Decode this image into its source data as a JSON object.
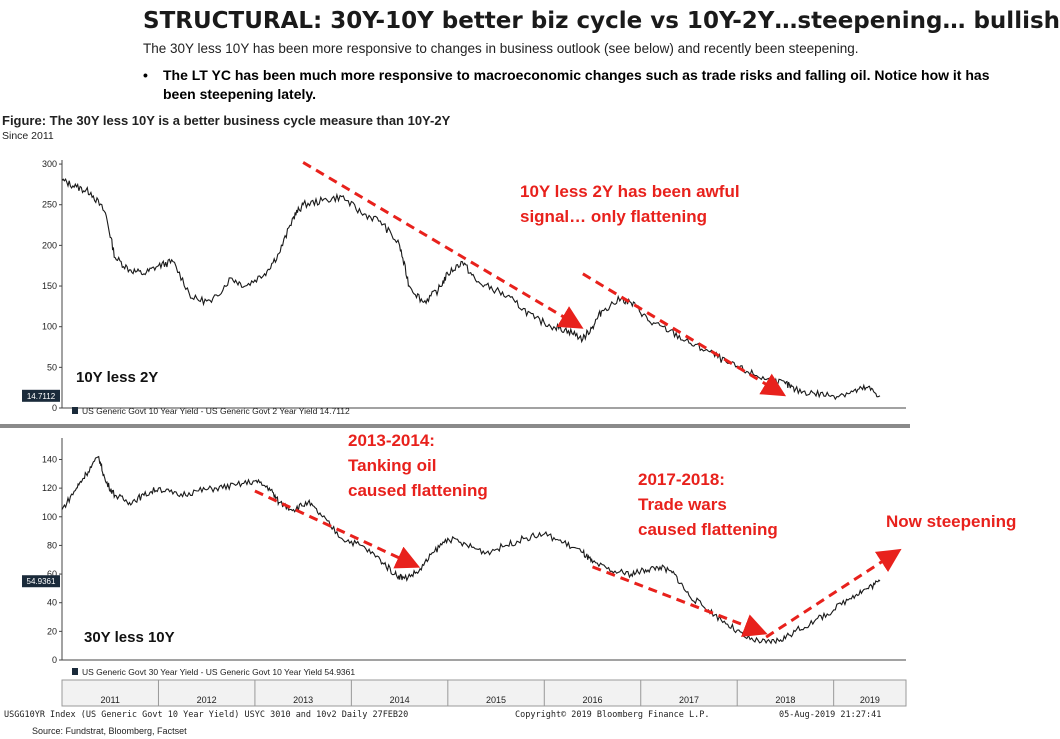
{
  "header": {
    "title": "STRUCTURAL: 30Y-10Y better biz cycle vs 10Y-2Y…steepening… bullish",
    "subtitle": "The 30Y less 10Y has been more responsive to changes in business outlook (see below) and recently been steepening.",
    "bullet_symbol": "•",
    "bullet_text": "The LT YC has been much more responsive to macroeconomic changes such as trade risks and falling oil. Notice how it has been steepening lately."
  },
  "figure": {
    "title": "Figure: The 30Y less 10Y is a better business cycle measure than 10Y-2Y",
    "subtitle": "Since 2011"
  },
  "footer": {
    "index_info": "USGG10YR Index (US Generic Govt 10 Year Yield) USYC 3010 and 10v2  Daily 27FEB20",
    "copyright": "Copyright© 2019 Bloomberg Finance L.P.",
    "timestamp": "05-Aug-2019 21:27:41",
    "source": "Source: Fundstrat, Bloomberg, Factset"
  },
  "colors": {
    "line": "#1a1a1a",
    "arrow": "#e8211c",
    "annotation": "#e8211c",
    "badge_bg": "#1a2a3a"
  },
  "chart_data": [
    {
      "type": "line",
      "name": "top",
      "panel_label": "10Y less 2Y",
      "legend": "US Generic Govt 10 Year Yield - US Generic Govt 2 Year Yield 14.7112",
      "last_value_label": "14.7112",
      "yticks": [
        0,
        50,
        100,
        150,
        200,
        250,
        300
      ],
      "ylim": [
        0,
        305
      ],
      "xlim": [
        2011.0,
        2019.75
      ],
      "x": [
        2011.0,
        2011.15,
        2011.3,
        2011.45,
        2011.55,
        2011.7,
        2011.85,
        2012.0,
        2012.15,
        2012.35,
        2012.55,
        2012.75,
        2012.9,
        2013.1,
        2013.25,
        2013.4,
        2013.5,
        2013.7,
        2013.9,
        2014.1,
        2014.3,
        2014.5,
        2014.6,
        2014.75,
        2014.9,
        2015.0,
        2015.15,
        2015.3,
        2015.5,
        2015.7,
        2015.9,
        2016.1,
        2016.25,
        2016.4,
        2016.5,
        2016.6,
        2016.8,
        2016.95,
        2017.1,
        2017.3,
        2017.5,
        2017.7,
        2017.9,
        2018.1,
        2018.3,
        2018.5,
        2018.6,
        2018.8,
        2019.0,
        2019.2,
        2019.35,
        2019.48
      ],
      "values": [
        280,
        272,
        265,
        240,
        185,
        170,
        165,
        175,
        180,
        135,
        130,
        160,
        150,
        165,
        190,
        235,
        250,
        255,
        260,
        240,
        230,
        200,
        150,
        130,
        145,
        165,
        180,
        155,
        145,
        130,
        110,
        100,
        95,
        85,
        100,
        120,
        135,
        125,
        105,
        95,
        80,
        70,
        55,
        45,
        35,
        30,
        22,
        18,
        15,
        20,
        25,
        15
      ],
      "annotations": [
        {
          "id": "a1",
          "text": "10Y less 2Y has been awful",
          "text2": "signal… only flattening"
        }
      ],
      "trend_arrows": [
        {
          "from": [
            2013.5,
            302
          ],
          "to": [
            2016.3,
            105
          ]
        },
        {
          "from": [
            2016.4,
            165
          ],
          "to": [
            2018.4,
            22
          ]
        }
      ]
    },
    {
      "type": "line",
      "name": "bottom",
      "panel_label": "30Y less 10Y",
      "legend": "US Generic Govt 30 Year Yield - US Generic Govt 10 Year Yield 54.9361",
      "last_value_label": "54.9361",
      "yticks": [
        0,
        20,
        40,
        60,
        80,
        100,
        120,
        140
      ],
      "ylim": [
        0,
        155
      ],
      "xlim": [
        2011.0,
        2019.75
      ],
      "x": [
        2011.0,
        2011.15,
        2011.25,
        2011.38,
        2011.45,
        2011.55,
        2011.7,
        2011.85,
        2012.0,
        2012.2,
        2012.4,
        2012.6,
        2012.8,
        2013.0,
        2013.15,
        2013.25,
        2013.4,
        2013.55,
        2013.7,
        2013.9,
        2014.1,
        2014.3,
        2014.45,
        2014.55,
        2014.7,
        2014.85,
        2015.0,
        2015.2,
        2015.4,
        2015.6,
        2015.8,
        2016.0,
        2016.2,
        2016.4,
        2016.5,
        2016.7,
        2016.9,
        2017.05,
        2017.2,
        2017.35,
        2017.5,
        2017.7,
        2017.9,
        2018.1,
        2018.3,
        2018.45,
        2018.6,
        2018.8,
        2019.0,
        2019.2,
        2019.35,
        2019.48
      ],
      "values": [
        105,
        120,
        130,
        142,
        125,
        115,
        110,
        115,
        120,
        115,
        118,
        120,
        122,
        125,
        120,
        110,
        105,
        110,
        100,
        85,
        80,
        70,
        60,
        57,
        62,
        75,
        85,
        80,
        75,
        80,
        85,
        88,
        82,
        75,
        68,
        62,
        60,
        63,
        65,
        60,
        45,
        35,
        25,
        15,
        12,
        14,
        20,
        27,
        35,
        45,
        50,
        55
      ],
      "annotations": [
        {
          "id": "b1",
          "text": "2013-2014:",
          "text2": "Tanking oil",
          "text3": "caused flattening"
        },
        {
          "id": "b2",
          "text": "2017-2018:",
          "text2": "Trade wars",
          "text3": "caused flattening"
        },
        {
          "id": "b3",
          "text": "Now steepening"
        }
      ],
      "trend_arrows": [
        {
          "from": [
            2013.0,
            118
          ],
          "to": [
            2014.6,
            68
          ]
        },
        {
          "from": [
            2016.5,
            65
          ],
          "to": [
            2018.2,
            21
          ]
        },
        {
          "from": [
            2018.3,
            16
          ],
          "to": [
            2019.6,
            73
          ]
        }
      ]
    }
  ],
  "xaxis": {
    "tick_labels": [
      "2011",
      "2012",
      "2013",
      "2014",
      "2015",
      "2016",
      "2017",
      "2018",
      "2019"
    ]
  }
}
